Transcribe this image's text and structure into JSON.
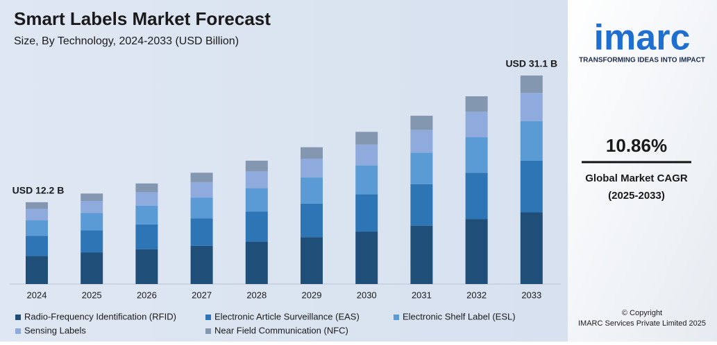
{
  "chart_data": {
    "type": "stacked-bar",
    "title": "Smart Labels Market Forecast",
    "subtitle": "Size, By Technology, 2024-2033 (USD Billion)",
    "categories": [
      "2024",
      "2025",
      "2026",
      "2027",
      "2028",
      "2029",
      "2030",
      "2031",
      "2032",
      "2033"
    ],
    "series": [
      {
        "name": "Radio-Frequency Identification (RFID)",
        "color": "#1f4e79",
        "values": [
          4.2,
          4.7,
          5.2,
          5.7,
          6.3,
          7.0,
          7.8,
          8.7,
          9.7,
          10.7
        ]
      },
      {
        "name": "Electronic Article Surveillance (EAS)",
        "color": "#2e75b6",
        "values": [
          3.0,
          3.3,
          3.7,
          4.1,
          4.5,
          5.0,
          5.6,
          6.2,
          6.9,
          7.7
        ]
      },
      {
        "name": "Electronic Shelf Label (ESL)",
        "color": "#5b9bd5",
        "values": [
          2.3,
          2.6,
          2.8,
          3.1,
          3.5,
          3.9,
          4.3,
          4.7,
          5.3,
          5.9
        ]
      },
      {
        "name": "Sensing Labels",
        "color": "#8faadc",
        "values": [
          1.7,
          1.8,
          2.0,
          2.3,
          2.5,
          2.8,
          3.1,
          3.4,
          3.8,
          4.2
        ]
      },
      {
        "name": "Near Field Communication (NFC)",
        "color": "#8497b0",
        "values": [
          1.0,
          1.1,
          1.3,
          1.4,
          1.6,
          1.7,
          1.9,
          2.1,
          2.3,
          2.6
        ]
      }
    ],
    "annotations": [
      {
        "text": "USD 12.2 B",
        "category": 0
      },
      {
        "text": "USD 31.1 B",
        "category": 9
      }
    ]
  },
  "side_panel": {
    "logo": "imarc",
    "tagline": "TRANSFORMING IDEAS INTO IMPACT",
    "cagr": "10.86%",
    "cagr_label": "Global Market CAGR",
    "cagr_period": "(2025-2033)",
    "copyright": "© Copyright",
    "company": "IMARC Services Private Limited 2025"
  }
}
